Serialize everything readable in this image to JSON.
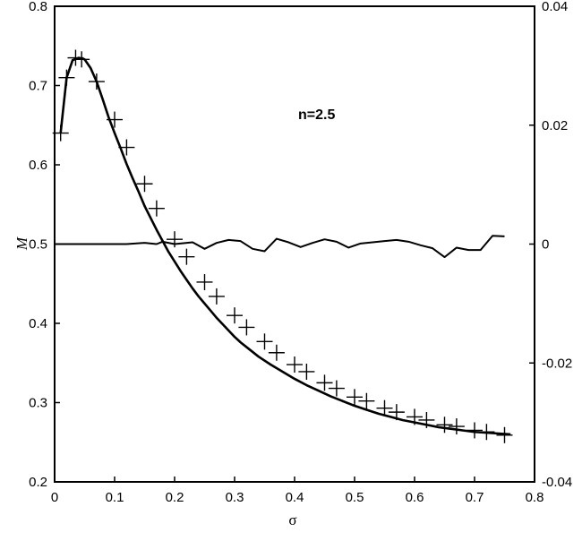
{
  "chart_data": {
    "type": "line",
    "xlabel": "σ",
    "ylabel": "M",
    "xlim": [
      0,
      0.8
    ],
    "ylim": [
      0.2,
      0.8
    ],
    "y2lim": [
      -0.04,
      0.04
    ],
    "xticks": [
      "0",
      "0.1",
      "0.2",
      "0.3",
      "0.4",
      "0.5",
      "0.6",
      "0.7",
      "0.8"
    ],
    "yticks": [
      "0.2",
      "0.3",
      "0.4",
      "0.5",
      "0.6",
      "0.7",
      "0.8"
    ],
    "y2ticks": [
      "-0.04",
      "-0.02",
      "0",
      "0.02",
      "0.04"
    ],
    "annotation": "n=2.5",
    "grid": false,
    "series": [
      {
        "style": "line",
        "axis": "left",
        "x": [
          0.01,
          0.02,
          0.03,
          0.04,
          0.05,
          0.06,
          0.07,
          0.08,
          0.09,
          0.1,
          0.11,
          0.12,
          0.13,
          0.14,
          0.15,
          0.16,
          0.17,
          0.18,
          0.19,
          0.2,
          0.21,
          0.22,
          0.23,
          0.24,
          0.25,
          0.26,
          0.27,
          0.28,
          0.29,
          0.3,
          0.31,
          0.32,
          0.34,
          0.36,
          0.38,
          0.4,
          0.42,
          0.44,
          0.46,
          0.48,
          0.5,
          0.52,
          0.54,
          0.56,
          0.58,
          0.6,
          0.62,
          0.64,
          0.66,
          0.68,
          0.7,
          0.72,
          0.74,
          0.76
        ],
        "y": [
          0.64,
          0.71,
          0.732,
          0.735,
          0.733,
          0.722,
          0.705,
          0.683,
          0.66,
          0.64,
          0.621,
          0.601,
          0.583,
          0.566,
          0.548,
          0.533,
          0.518,
          0.504,
          0.49,
          0.478,
          0.466,
          0.455,
          0.444,
          0.434,
          0.425,
          0.416,
          0.407,
          0.399,
          0.391,
          0.383,
          0.376,
          0.37,
          0.358,
          0.348,
          0.339,
          0.33,
          0.322,
          0.315,
          0.308,
          0.302,
          0.296,
          0.291,
          0.286,
          0.282,
          0.278,
          0.275,
          0.272,
          0.269,
          0.267,
          0.265,
          0.263,
          0.262,
          0.261,
          0.26
        ]
      },
      {
        "style": "markers",
        "marker": "+",
        "axis": "left",
        "x": [
          0.01,
          0.02,
          0.035,
          0.045,
          0.07,
          0.1,
          0.12,
          0.15,
          0.17,
          0.2,
          0.22,
          0.25,
          0.27,
          0.3,
          0.32,
          0.35,
          0.37,
          0.4,
          0.42,
          0.45,
          0.47,
          0.5,
          0.52,
          0.55,
          0.57,
          0.6,
          0.62,
          0.65,
          0.67,
          0.7,
          0.72,
          0.75
        ],
        "y": [
          0.64,
          0.71,
          0.735,
          0.733,
          0.705,
          0.657,
          0.622,
          0.576,
          0.545,
          0.506,
          0.484,
          0.452,
          0.434,
          0.41,
          0.395,
          0.377,
          0.363,
          0.348,
          0.339,
          0.325,
          0.318,
          0.307,
          0.302,
          0.293,
          0.288,
          0.282,
          0.278,
          0.272,
          0.27,
          0.265,
          0.263,
          0.259
        ]
      },
      {
        "style": "line",
        "axis": "right",
        "x": [
          0.0,
          0.12,
          0.15,
          0.17,
          0.18,
          0.2,
          0.23,
          0.25,
          0.27,
          0.29,
          0.31,
          0.33,
          0.35,
          0.37,
          0.39,
          0.41,
          0.43,
          0.45,
          0.47,
          0.49,
          0.51,
          0.53,
          0.55,
          0.57,
          0.59,
          0.61,
          0.63,
          0.65,
          0.67,
          0.69,
          0.71,
          0.73,
          0.75
        ],
        "y": [
          0.0,
          0.0,
          0.0002,
          0.0,
          0.0004,
          0.0,
          0.0003,
          -0.0008,
          0.0002,
          0.0007,
          0.0005,
          -0.0008,
          -0.0012,
          0.0009,
          0.0003,
          -0.0005,
          0.0002,
          0.0008,
          0.0004,
          -0.0006,
          0.0001,
          0.0003,
          0.0005,
          0.0007,
          0.0004,
          -0.0002,
          -0.0007,
          -0.0022,
          -0.0006,
          -0.001,
          -0.001,
          0.0014,
          0.0013
        ]
      }
    ]
  }
}
